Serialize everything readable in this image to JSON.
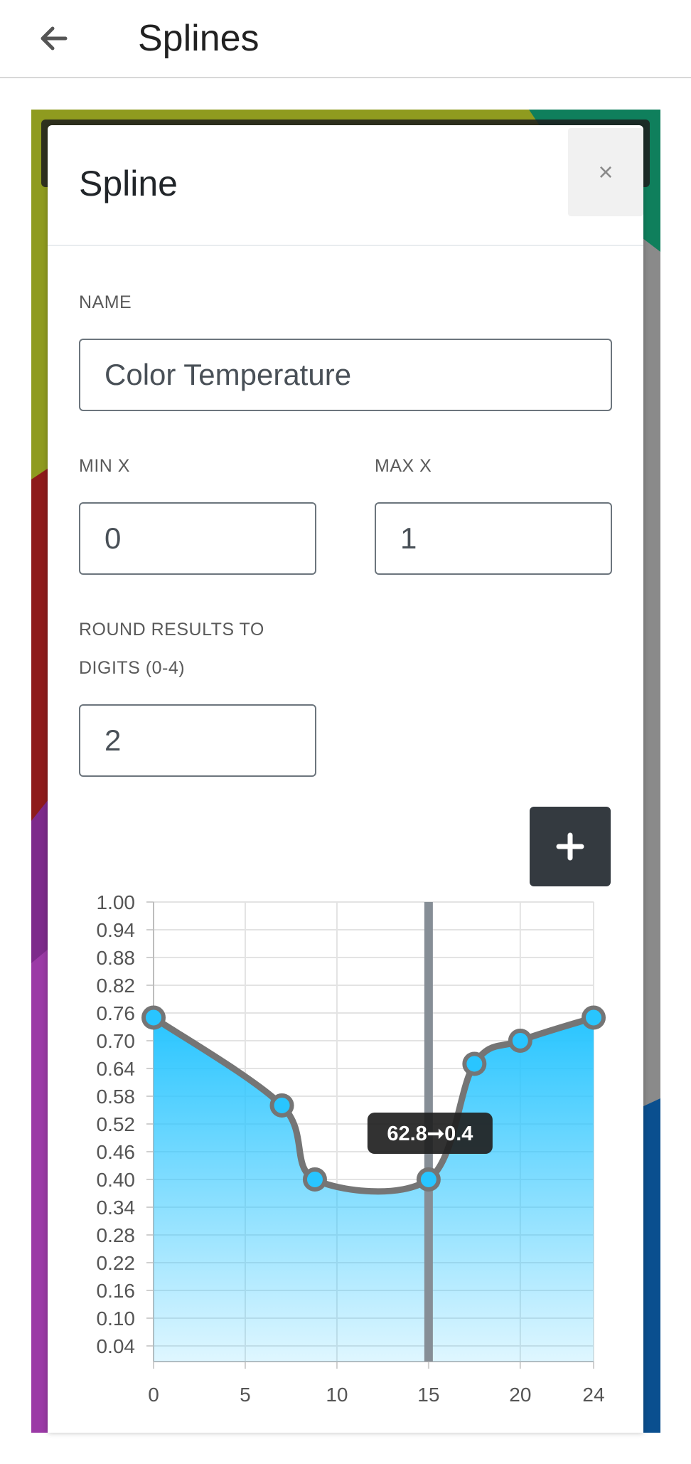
{
  "topbar": {
    "title": "Splines",
    "back_icon": "arrow-left-icon"
  },
  "modal": {
    "title": "Spline",
    "close_label": "×",
    "name_label": "NAME",
    "name_value": "Color Temperature",
    "min_x_label": "MIN X",
    "min_x_value": "0",
    "max_x_label": "MAX X",
    "max_x_value": "1",
    "round_label_line1": "ROUND RESULTS TO",
    "round_label_line2": "DIGITS (0-4)",
    "round_value": "2",
    "add_point_icon": "plus-icon"
  },
  "colors": {
    "accent": "#29c5ff",
    "line": "#757575",
    "dark_button": "#343a40",
    "cursor": "#868e96"
  },
  "chart_data": {
    "type": "area",
    "title": "",
    "xlabel": "",
    "ylabel": "",
    "xlim": [
      0,
      24
    ],
    "ylim": [
      0.01,
      1.0
    ],
    "x_ticks": [
      "0",
      "5",
      "10",
      "15",
      "20",
      "24"
    ],
    "y_ticks": [
      "1.00",
      "0.94",
      "0.88",
      "0.82",
      "0.76",
      "0.70",
      "0.64",
      "0.58",
      "0.52",
      "0.46",
      "0.40",
      "0.34",
      "0.28",
      "0.22",
      "0.16",
      "0.10",
      "0.04"
    ],
    "grid": true,
    "series": [
      {
        "points": [
          {
            "x": 0,
            "y": 0.75
          },
          {
            "x": 7,
            "y": 0.56
          },
          {
            "x": 8.8,
            "y": 0.4
          },
          {
            "x": 15,
            "y": 0.4
          },
          {
            "x": 17.5,
            "y": 0.65
          },
          {
            "x": 20,
            "y": 0.7
          },
          {
            "x": 24,
            "y": 0.75
          }
        ]
      }
    ],
    "cursor_x": 15,
    "tooltip": "62.8➞0.4"
  }
}
